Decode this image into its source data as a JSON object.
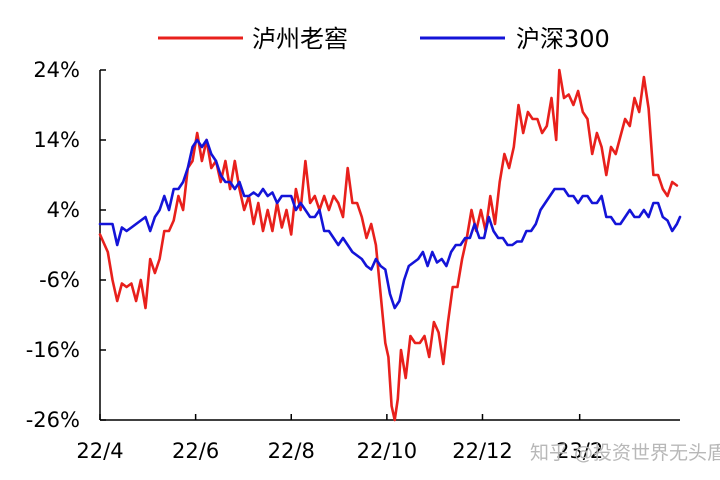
{
  "chart_data": {
    "type": "line",
    "title": "",
    "xlabel": "",
    "ylabel": "",
    "y_ticks": [
      "24%",
      "14%",
      "4%",
      "-6%",
      "-16%",
      "-26%"
    ],
    "y_tick_values": [
      24,
      14,
      4,
      -6,
      -16,
      -26
    ],
    "ylim": [
      -26,
      24
    ],
    "x_ticks": [
      "22/4",
      "22/6",
      "22/8",
      "22/10",
      "22/12",
      "23/2"
    ],
    "x_tick_values": [
      "2022-04-01",
      "2022-06-01",
      "2022-08-01",
      "2022-10-01",
      "2022-12-01",
      "2023-02-01"
    ],
    "xlim": [
      "2022-04-01",
      "2023-04-06"
    ],
    "grid": false,
    "legend_position": "top",
    "watermark": "知乎 @投资世界无头盾",
    "series": [
      {
        "name": "泸州老窖",
        "color": "#e8201c",
        "points": [
          [
            "2022-04-01",
            0.5
          ],
          [
            "2022-04-06",
            -2
          ],
          [
            "2022-04-09",
            -6
          ],
          [
            "2022-04-12",
            -9
          ],
          [
            "2022-04-15",
            -6.5
          ],
          [
            "2022-04-18",
            -7
          ],
          [
            "2022-04-21",
            -6.5
          ],
          [
            "2022-04-24",
            -9
          ],
          [
            "2022-04-27",
            -6
          ],
          [
            "2022-04-30",
            -10
          ],
          [
            "2022-05-03",
            -3
          ],
          [
            "2022-05-06",
            -5
          ],
          [
            "2022-05-09",
            -3
          ],
          [
            "2022-05-12",
            1
          ],
          [
            "2022-05-15",
            1
          ],
          [
            "2022-05-18",
            2.5
          ],
          [
            "2022-05-21",
            6
          ],
          [
            "2022-05-24",
            4
          ],
          [
            "2022-05-27",
            10
          ],
          [
            "2022-05-30",
            11
          ],
          [
            "2022-06-02",
            15
          ],
          [
            "2022-06-05",
            11
          ],
          [
            "2022-06-08",
            14
          ],
          [
            "2022-06-11",
            10
          ],
          [
            "2022-06-14",
            11
          ],
          [
            "2022-06-17",
            8
          ],
          [
            "2022-06-20",
            11
          ],
          [
            "2022-06-23",
            7
          ],
          [
            "2022-06-26",
            11
          ],
          [
            "2022-06-29",
            7
          ],
          [
            "2022-07-02",
            4
          ],
          [
            "2022-07-05",
            6
          ],
          [
            "2022-07-08",
            2
          ],
          [
            "2022-07-11",
            5
          ],
          [
            "2022-07-14",
            1
          ],
          [
            "2022-07-17",
            4
          ],
          [
            "2022-07-20",
            1
          ],
          [
            "2022-07-23",
            5
          ],
          [
            "2022-07-26",
            1.5
          ],
          [
            "2022-07-29",
            4
          ],
          [
            "2022-08-01",
            0.5
          ],
          [
            "2022-08-04",
            7
          ],
          [
            "2022-08-07",
            4
          ],
          [
            "2022-08-10",
            11
          ],
          [
            "2022-08-13",
            5
          ],
          [
            "2022-08-16",
            6
          ],
          [
            "2022-08-19",
            4
          ],
          [
            "2022-08-22",
            6
          ],
          [
            "2022-08-25",
            4
          ],
          [
            "2022-08-28",
            6
          ],
          [
            "2022-08-31",
            5
          ],
          [
            "2022-09-03",
            3
          ],
          [
            "2022-09-06",
            10
          ],
          [
            "2022-09-09",
            5
          ],
          [
            "2022-09-12",
            5
          ],
          [
            "2022-09-15",
            3
          ],
          [
            "2022-09-18",
            0
          ],
          [
            "2022-09-21",
            2
          ],
          [
            "2022-09-24",
            -1
          ],
          [
            "2022-09-27",
            -8
          ],
          [
            "2022-09-30",
            -15
          ],
          [
            "2022-10-02",
            -17
          ],
          [
            "2022-10-04",
            -24
          ],
          [
            "2022-10-06",
            -26
          ],
          [
            "2022-10-08",
            -23
          ],
          [
            "2022-10-10",
            -16
          ],
          [
            "2022-10-13",
            -20
          ],
          [
            "2022-10-16",
            -14
          ],
          [
            "2022-10-19",
            -15
          ],
          [
            "2022-10-22",
            -15
          ],
          [
            "2022-10-25",
            -14
          ],
          [
            "2022-10-28",
            -17
          ],
          [
            "2022-10-31",
            -12
          ],
          [
            "2022-11-03",
            -13.5
          ],
          [
            "2022-11-06",
            -18
          ],
          [
            "2022-11-09",
            -12
          ],
          [
            "2022-11-12",
            -7
          ],
          [
            "2022-11-15",
            -7
          ],
          [
            "2022-11-18",
            -3
          ],
          [
            "2022-11-21",
            0
          ],
          [
            "2022-11-24",
            4
          ],
          [
            "2022-11-27",
            1
          ],
          [
            "2022-11-30",
            4
          ],
          [
            "2022-12-03",
            1
          ],
          [
            "2022-12-06",
            6
          ],
          [
            "2022-12-09",
            2
          ],
          [
            "2022-12-12",
            8
          ],
          [
            "2022-12-15",
            12
          ],
          [
            "2022-12-18",
            10
          ],
          [
            "2022-12-21",
            13
          ],
          [
            "2022-12-24",
            19
          ],
          [
            "2022-12-27",
            15
          ],
          [
            "2022-12-30",
            18
          ],
          [
            "2023-01-02",
            17
          ],
          [
            "2023-01-05",
            17
          ],
          [
            "2023-01-08",
            15
          ],
          [
            "2023-01-11",
            16
          ],
          [
            "2023-01-14",
            20
          ],
          [
            "2023-01-17",
            14
          ],
          [
            "2023-01-19",
            24
          ],
          [
            "2023-01-22",
            20
          ],
          [
            "2023-01-25",
            20.5
          ],
          [
            "2023-01-28",
            19
          ],
          [
            "2023-01-31",
            21
          ],
          [
            "2023-02-03",
            18
          ],
          [
            "2023-02-06",
            17
          ],
          [
            "2023-02-09",
            12
          ],
          [
            "2023-02-12",
            15
          ],
          [
            "2023-02-15",
            13
          ],
          [
            "2023-02-18",
            9
          ],
          [
            "2023-02-21",
            13
          ],
          [
            "2023-02-24",
            12
          ],
          [
            "2023-02-27",
            14.5
          ],
          [
            "2023-03-02",
            17
          ],
          [
            "2023-03-05",
            16
          ],
          [
            "2023-03-08",
            20
          ],
          [
            "2023-03-11",
            18
          ],
          [
            "2023-03-14",
            23
          ],
          [
            "2023-03-17",
            18.5
          ],
          [
            "2023-03-20",
            9
          ],
          [
            "2023-03-23",
            9
          ],
          [
            "2023-03-26",
            7
          ],
          [
            "2023-03-29",
            6
          ],
          [
            "2023-04-01",
            8
          ],
          [
            "2023-04-04",
            7.5
          ]
        ]
      },
      {
        "name": "沪深300",
        "color": "#1414d8",
        "points": [
          [
            "2022-04-01",
            2
          ],
          [
            "2022-04-05",
            2
          ],
          [
            "2022-04-09",
            2
          ],
          [
            "2022-04-12",
            -1
          ],
          [
            "2022-04-15",
            1.5
          ],
          [
            "2022-04-18",
            1
          ],
          [
            "2022-04-21",
            1.5
          ],
          [
            "2022-04-24",
            2
          ],
          [
            "2022-04-27",
            2.5
          ],
          [
            "2022-04-30",
            3
          ],
          [
            "2022-05-03",
            1
          ],
          [
            "2022-05-06",
            3
          ],
          [
            "2022-05-09",
            4
          ],
          [
            "2022-05-12",
            6
          ],
          [
            "2022-05-15",
            4
          ],
          [
            "2022-05-18",
            7
          ],
          [
            "2022-05-21",
            7
          ],
          [
            "2022-05-24",
            8
          ],
          [
            "2022-05-27",
            10
          ],
          [
            "2022-05-30",
            13
          ],
          [
            "2022-06-02",
            14
          ],
          [
            "2022-06-05",
            13
          ],
          [
            "2022-06-08",
            14
          ],
          [
            "2022-06-11",
            12
          ],
          [
            "2022-06-14",
            11
          ],
          [
            "2022-06-17",
            9
          ],
          [
            "2022-06-20",
            8
          ],
          [
            "2022-06-23",
            8
          ],
          [
            "2022-06-26",
            7
          ],
          [
            "2022-06-29",
            8
          ],
          [
            "2022-07-02",
            6
          ],
          [
            "2022-07-05",
            6
          ],
          [
            "2022-07-08",
            6.5
          ],
          [
            "2022-07-11",
            6
          ],
          [
            "2022-07-14",
            7
          ],
          [
            "2022-07-17",
            6
          ],
          [
            "2022-07-20",
            6.5
          ],
          [
            "2022-07-23",
            5
          ],
          [
            "2022-07-26",
            6
          ],
          [
            "2022-07-29",
            6
          ],
          [
            "2022-08-01",
            6
          ],
          [
            "2022-08-04",
            4
          ],
          [
            "2022-08-07",
            5
          ],
          [
            "2022-08-10",
            4
          ],
          [
            "2022-08-13",
            3
          ],
          [
            "2022-08-16",
            3
          ],
          [
            "2022-08-19",
            4
          ],
          [
            "2022-08-22",
            1
          ],
          [
            "2022-08-25",
            1
          ],
          [
            "2022-08-28",
            0
          ],
          [
            "2022-08-31",
            -1
          ],
          [
            "2022-09-03",
            0
          ],
          [
            "2022-09-06",
            -1
          ],
          [
            "2022-09-09",
            -2
          ],
          [
            "2022-09-12",
            -2.5
          ],
          [
            "2022-09-15",
            -3
          ],
          [
            "2022-09-18",
            -4
          ],
          [
            "2022-09-21",
            -4.5
          ],
          [
            "2022-09-24",
            -3
          ],
          [
            "2022-09-27",
            -4
          ],
          [
            "2022-09-30",
            -4.5
          ],
          [
            "2022-10-03",
            -8
          ],
          [
            "2022-10-06",
            -10
          ],
          [
            "2022-10-09",
            -9
          ],
          [
            "2022-10-12",
            -6
          ],
          [
            "2022-10-15",
            -4
          ],
          [
            "2022-10-18",
            -3.5
          ],
          [
            "2022-10-21",
            -3
          ],
          [
            "2022-10-24",
            -2
          ],
          [
            "2022-10-27",
            -4
          ],
          [
            "2022-10-30",
            -2
          ],
          [
            "2022-11-02",
            -3.5
          ],
          [
            "2022-11-05",
            -3
          ],
          [
            "2022-11-08",
            -4
          ],
          [
            "2022-11-11",
            -2
          ],
          [
            "2022-11-14",
            -1
          ],
          [
            "2022-11-17",
            -1
          ],
          [
            "2022-11-20",
            0
          ],
          [
            "2022-11-23",
            0
          ],
          [
            "2022-11-26",
            2
          ],
          [
            "2022-11-29",
            0
          ],
          [
            "2022-12-02",
            0
          ],
          [
            "2022-12-05",
            3
          ],
          [
            "2022-12-08",
            1
          ],
          [
            "2022-12-11",
            0
          ],
          [
            "2022-12-14",
            0
          ],
          [
            "2022-12-17",
            -1
          ],
          [
            "2022-12-20",
            -1
          ],
          [
            "2022-12-23",
            -0.5
          ],
          [
            "2022-12-26",
            -0.5
          ],
          [
            "2022-12-29",
            1
          ],
          [
            "2023-01-01",
            1
          ],
          [
            "2023-01-04",
            2
          ],
          [
            "2023-01-07",
            4
          ],
          [
            "2023-01-10",
            5
          ],
          [
            "2023-01-13",
            6
          ],
          [
            "2023-01-16",
            7
          ],
          [
            "2023-01-19",
            7
          ],
          [
            "2023-01-22",
            7
          ],
          [
            "2023-01-25",
            6
          ],
          [
            "2023-01-28",
            6
          ],
          [
            "2023-01-31",
            5
          ],
          [
            "2023-02-03",
            6
          ],
          [
            "2023-02-06",
            6
          ],
          [
            "2023-02-09",
            5
          ],
          [
            "2023-02-12",
            5
          ],
          [
            "2023-02-15",
            6
          ],
          [
            "2023-02-18",
            3
          ],
          [
            "2023-02-21",
            3
          ],
          [
            "2023-02-24",
            2
          ],
          [
            "2023-02-27",
            2
          ],
          [
            "2023-03-02",
            3
          ],
          [
            "2023-03-05",
            4
          ],
          [
            "2023-03-08",
            3
          ],
          [
            "2023-03-11",
            3
          ],
          [
            "2023-03-14",
            4
          ],
          [
            "2023-03-17",
            3
          ],
          [
            "2023-03-20",
            5
          ],
          [
            "2023-03-23",
            5
          ],
          [
            "2023-03-26",
            3
          ],
          [
            "2023-03-29",
            2.5
          ],
          [
            "2023-04-01",
            1
          ],
          [
            "2023-04-04",
            2
          ],
          [
            "2023-04-06",
            3
          ]
        ]
      }
    ]
  }
}
